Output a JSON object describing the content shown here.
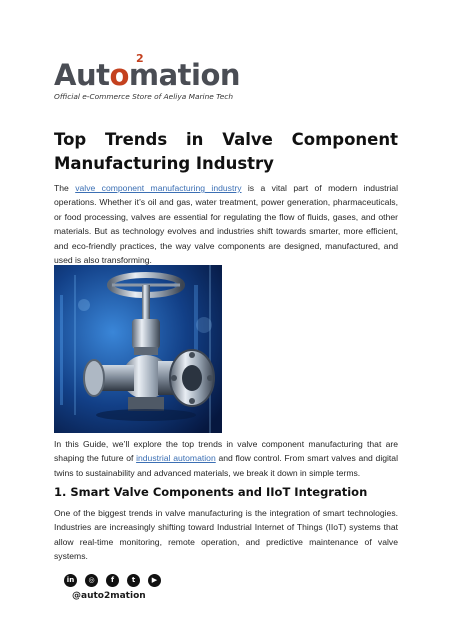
{
  "logo": {
    "word_prefix": "Aut",
    "word_o": "o",
    "word_suffix": "mation",
    "superscript": "2",
    "tagline": "Official e-Commerce Store of Aeliya Marine Tech"
  },
  "article": {
    "title": "Top Trends in Valve Component Manufacturing Industry",
    "intro": {
      "before_link": "The ",
      "link_text": "valve component manufacturing industry",
      "after_link": " is a vital part of modern industrial operations. Whether it’s oil and gas, water treatment, power generation, pharmaceuticals, or food processing, valves are essential for regulating the flow of fluids, gases, and other materials. But as technology evolves and industries shift towards smarter, more efficient, and eco-friendly practices, the way valve components are designed, manufactured, and used is also transforming."
    },
    "guide": {
      "before_link": "In this Guide, we’ll explore the top trends in valve component manufacturing that are shaping the future of ",
      "link_text": "industrial automation",
      "after_link": " and flow control. From smart valves and digital twins to sustainability and advanced materials, we break it down in simple terms."
    },
    "section1_heading": "1. Smart Valve Components and IIoT Integration",
    "section1_text": "One of the biggest trends in valve manufacturing is the integration of smart technologies. Industries are increasingly shifting toward Industrial Internet of Things (IIoT) systems that allow real-time monitoring, remote operation, and predictive maintenance of valve systems."
  },
  "footer": {
    "icons": [
      {
        "name": "linkedin-icon",
        "glyph": "in"
      },
      {
        "name": "instagram-icon",
        "glyph": "◎"
      },
      {
        "name": "facebook-icon",
        "glyph": "f"
      },
      {
        "name": "twitter-icon",
        "glyph": "t"
      },
      {
        "name": "youtube-icon",
        "glyph": "▶"
      }
    ],
    "handle": "@auto2mation"
  },
  "colors": {
    "accent": "#c4411f",
    "link": "#3b6fb4",
    "text": "#262626"
  }
}
